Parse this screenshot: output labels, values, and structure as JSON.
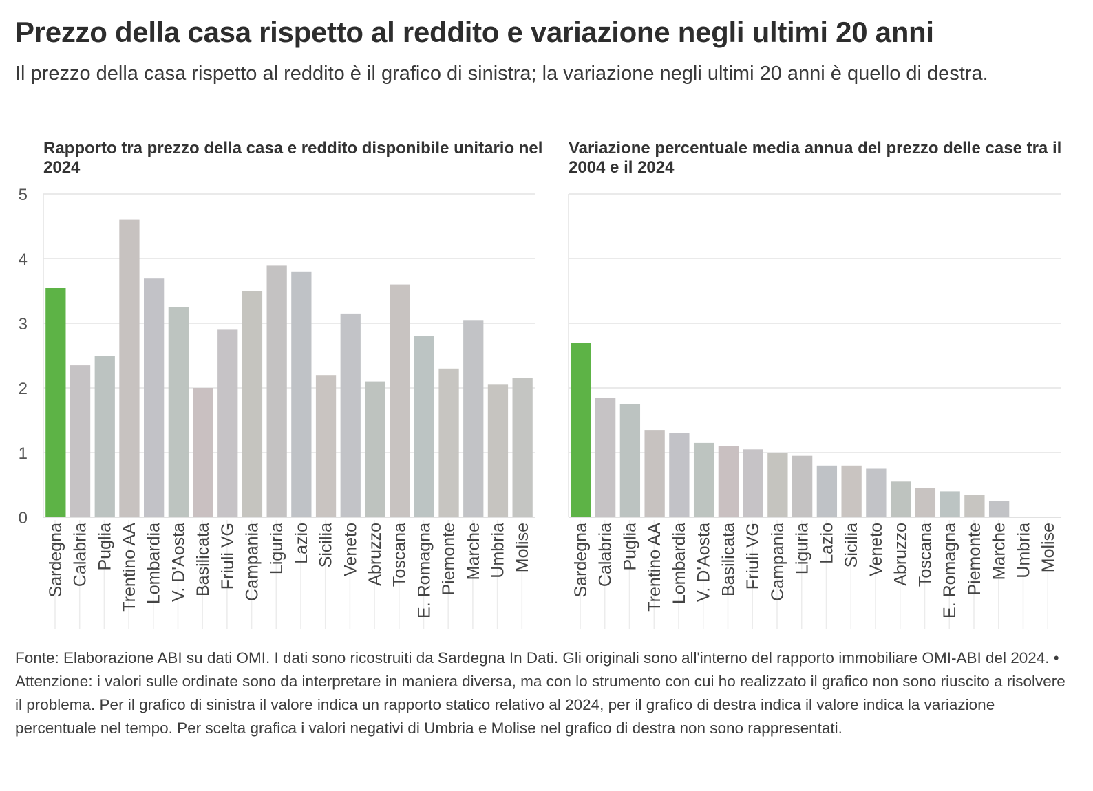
{
  "title": "Prezzo della casa rispetto al reddito e variazione negli ultimi 20 anni",
  "subtitle": "Il prezzo della casa rispetto al reddito è il grafico di sinistra; la variazione negli ultimi 20 anni è quello di destra.",
  "footer": "Fonte: Elaborazione ABI su dati OMI. I dati sono ricostruiti da Sardegna In Dati. Gli originali sono all'interno del rapporto immobiliare OMI-ABI del 2024. • Attenzione: i valori sulle ordinate sono da interpretare in maniera diversa, ma con lo strumento con cui ho realizzato il grafico non sono riuscito a risolvere il problema. Per il grafico di sinistra il valore indica un rapporto statico relativo al 2024, per il grafico di destra indica il valore indica la variazione percentuale nel tempo. Per scelta grafica i valori negativi di Umbria e Molise nel grafico di destra non sono rappresentati.",
  "colors": {
    "highlight": "#5db346",
    "bars": [
      "#c4c5c2",
      "#c6c3c5",
      "#bcc3c1",
      "#c7c2c0",
      "#c2c2c7",
      "#bdc4c0",
      "#c9c0c1",
      "#c6c3c6",
      "#c5c4bf",
      "#c4c2c2",
      "#bfc2c6",
      "#c9c4c1",
      "#c2c3c7",
      "#bec3bf",
      "#c8c3c1",
      "#bcc4c3",
      "#c7c5c1",
      "#c2c3c6",
      "#c6c4c0"
    ]
  },
  "chart_data": [
    {
      "type": "bar",
      "title": "Rapporto tra prezzo della casa e reddito disponibile unitario nel 2024",
      "categories": [
        "Sardegna",
        "Calabria",
        "Puglia",
        "Trentino AA",
        "Lombardia",
        "V. D'Aosta",
        "Basilicata",
        "Friuli VG",
        "Campania",
        "Liguria",
        "Lazio",
        "Sicilia",
        "Veneto",
        "Abruzzo",
        "Toscana",
        "E. Romagna",
        "Piemonte",
        "Marche",
        "Umbria",
        "Molise"
      ],
      "values": [
        3.55,
        2.35,
        2.5,
        4.6,
        3.7,
        3.25,
        2.0,
        2.9,
        3.5,
        3.9,
        3.8,
        2.2,
        3.15,
        2.1,
        3.6,
        2.8,
        2.3,
        3.05,
        2.05,
        2.15
      ],
      "ylim": [
        0,
        5
      ],
      "yticks": [
        "0",
        "1",
        "2",
        "3",
        "4",
        "5"
      ],
      "highlight": "Sardegna",
      "xlabel": "",
      "ylabel": ""
    },
    {
      "type": "bar",
      "title": "Variazione percentuale media annua del prezzo delle case tra il 2004 e il 2024",
      "categories": [
        "Sardegna",
        "Calabria",
        "Puglia",
        "Trentino AA",
        "Lombardia",
        "V. D'Aosta",
        "Basilicata",
        "Friuli VG",
        "Campania",
        "Liguria",
        "Lazio",
        "Sicilia",
        "Veneto",
        "Abruzzo",
        "Toscana",
        "E. Romagna",
        "Piemonte",
        "Marche",
        "Umbria",
        "Molise"
      ],
      "values": [
        2.7,
        1.85,
        1.75,
        1.35,
        1.3,
        1.15,
        1.1,
        1.05,
        1.0,
        0.95,
        0.8,
        0.8,
        0.75,
        0.55,
        0.45,
        0.4,
        0.35,
        0.25,
        0,
        0
      ],
      "ylim": [
        0,
        5
      ],
      "highlight": "Sardegna",
      "xlabel": "",
      "ylabel": ""
    }
  ]
}
